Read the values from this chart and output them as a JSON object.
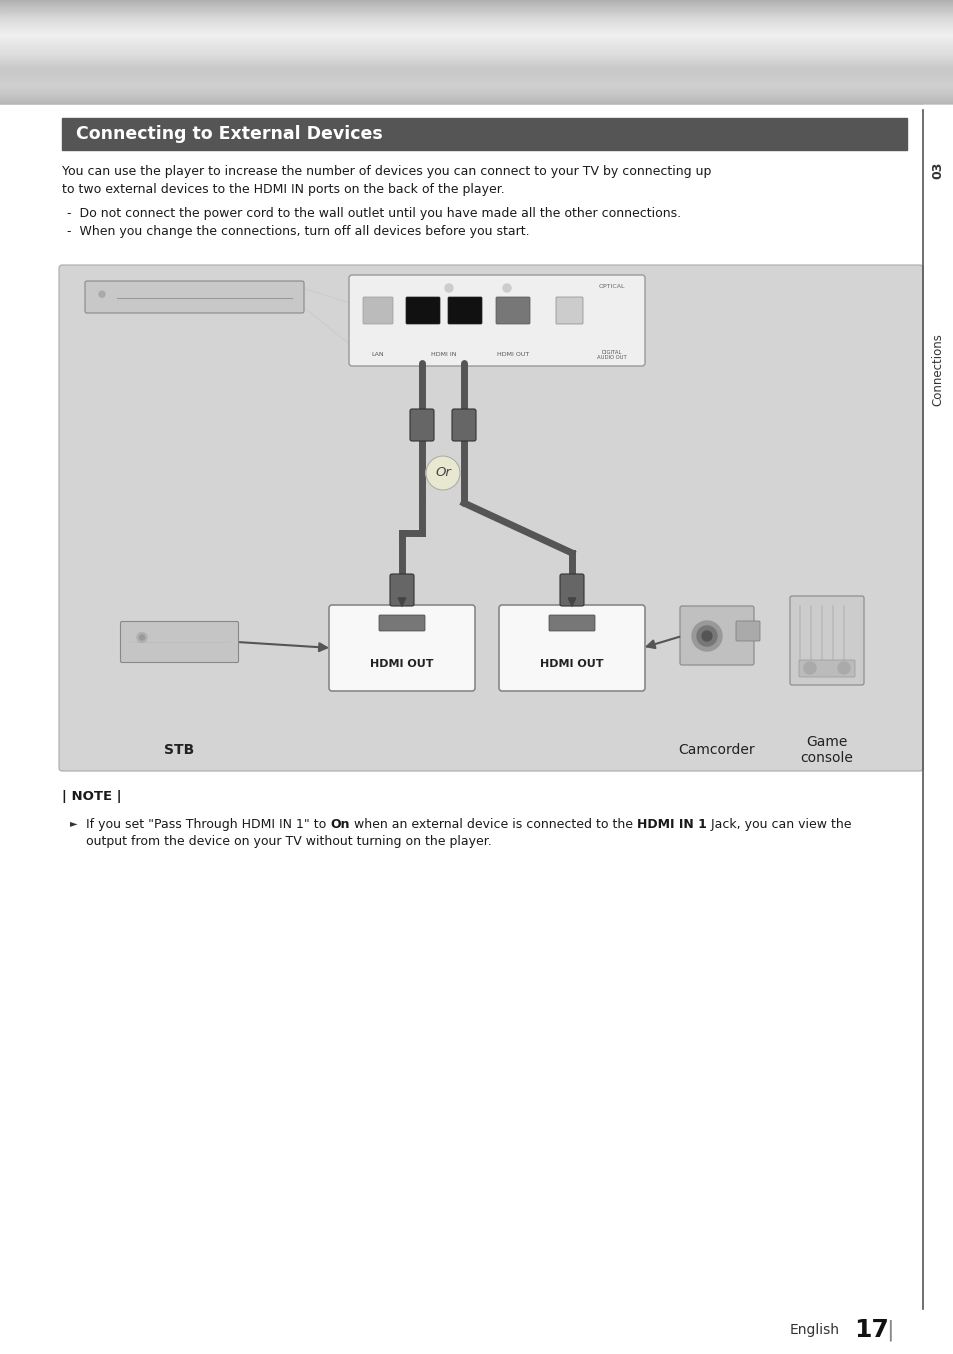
{
  "title": "Connecting to External Devices",
  "title_bg": "#555555",
  "title_text_color": "#ffffff",
  "page_bg": "#ffffff",
  "body_text_1": "You can use the player to increase the number of devices you can connect to your TV by connecting up",
  "body_text_2": "to two external devices to the HDMI IN ports on the back of the player.",
  "bullet_1": "-  Do not connect the power cord to the wall outlet until you have made all the other connections.",
  "bullet_2": "-  When you change the connections, turn off all devices before you start.",
  "note_label": "| NOTE |",
  "note_bullet": "►",
  "note_line1_pre": "If you set \"Pass Through HDMI IN 1\" to ",
  "note_line1_bold1": "On",
  "note_line1_mid": " when an external device is connected to the ",
  "note_line1_bold2": "HDMI IN 1",
  "note_line1_end": " Jack, you can view the",
  "note_line2": "output from the device on your TV without turning on the player.",
  "diagram_bg": "#d4d4d4",
  "side_label": "Connections",
  "side_number": "03",
  "footer_text": "English",
  "footer_number": "17",
  "hdmi_out_label": "HDMI OUT",
  "stb_label": "STB",
  "camcorder_label": "Camcorder",
  "game_label": "Game\nconsole",
  "or_label": "Or",
  "header_gradient_colors": [
    "#b0b0b0",
    "#d8d8d8",
    "#f0f0f0",
    "#e0e0e0",
    "#c8c8c8",
    "#d0d0d0",
    "#b8b8b8"
  ]
}
